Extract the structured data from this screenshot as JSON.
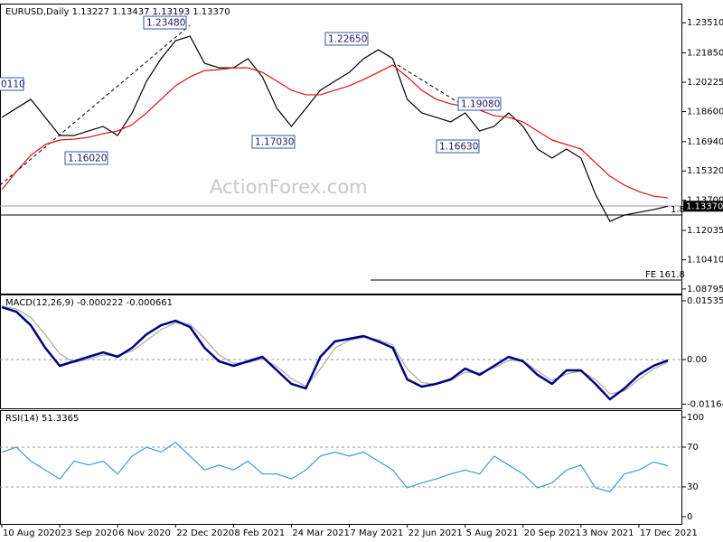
{
  "chart_data": [
    {
      "type": "line",
      "title": "EURUSD,Daily  1.13227 1.13437 1.13193 1.13370",
      "watermark": "ActionForex.com",
      "annotations": [
        "1.23480",
        "1.22650",
        "1.17030",
        "1.16020",
        "1.19080",
        "1.16630",
        "0110"
      ],
      "fe_label": "FE 161.8",
      "fib_label": "1.8",
      "price_label": "1.13370",
      "x": [
        0,
        8,
        16,
        24,
        32,
        40,
        48,
        56,
        64,
        72,
        80,
        88,
        96,
        104,
        112,
        120,
        128,
        136,
        144,
        152,
        160,
        168,
        176,
        184,
        192,
        200,
        208,
        216,
        224,
        232,
        240,
        248,
        256,
        264,
        272,
        280,
        288,
        296,
        304,
        312,
        320,
        328,
        336,
        344,
        352,
        360,
        368
      ],
      "xlim": [
        -1,
        376
      ],
      "ylim": [
        1.0854,
        1.2452
      ],
      "yticks": [
        {
          "value": 1.2351,
          "label": "1.23510"
        },
        {
          "value": 1.2185,
          "label": "1.21850"
        },
        {
          "value": 1.20225,
          "label": "1.20225"
        },
        {
          "value": 1.186,
          "label": "1.18600"
        },
        {
          "value": 1.1694,
          "label": "1.16940"
        },
        {
          "value": 1.1532,
          "label": "1.15320"
        },
        {
          "value": 1.137,
          "label": "1.13700"
        },
        {
          "value": 1.12035,
          "label": "1.12035"
        },
        {
          "value": 1.1041,
          "label": "1.10410"
        },
        {
          "value": 1.08795,
          "label": "1.08795"
        }
      ],
      "series": [
        {
          "color": "#000000",
          "values": [
            1.1828,
            1.1878,
            1.1928,
            1.1828,
            1.1728,
            1.1728,
            1.1753,
            1.1778,
            1.1728,
            1.1853,
            1.2028,
            1.2153,
            1.2252,
            1.2277,
            1.2127,
            1.2102,
            1.2102,
            1.2153,
            1.2052,
            1.1878,
            1.1778,
            1.1878,
            1.1978,
            1.2028,
            1.2077,
            1.2153,
            1.2202,
            1.2153,
            1.1928,
            1.1853,
            1.1828,
            1.1803,
            1.1853,
            1.1753,
            1.1778,
            1.1853,
            1.1778,
            1.1653,
            1.1603,
            1.1653,
            1.1603,
            1.1403,
            1.1253,
            1.1288,
            1.1303,
            1.1318,
            1.1337
          ]
        },
        {
          "color": "#e01010",
          "values": [
            1.1428,
            1.1528,
            1.1618,
            1.1678,
            1.1703,
            1.1708,
            1.1718,
            1.1738,
            1.1753,
            1.1788,
            1.1853,
            1.1928,
            1.2003,
            1.2052,
            1.2087,
            1.2092,
            1.2102,
            1.2102,
            1.2077,
            1.2028,
            1.1978,
            1.1953,
            1.1953,
            1.1978,
            1.2003,
            1.2038,
            1.2077,
            1.2117,
            1.2052,
            1.1978,
            1.1928,
            1.1903,
            1.1888,
            1.1868,
            1.1838,
            1.1828,
            1.1803,
            1.1753,
            1.1703,
            1.1678,
            1.1653,
            1.1578,
            1.1503,
            1.1453,
            1.1418,
            1.1393,
            1.1383
          ]
        }
      ]
    },
    {
      "type": "line",
      "title": "MACD(12,26,9) -0.000222 -0.000661",
      "x": [
        0,
        8,
        16,
        24,
        32,
        40,
        48,
        56,
        64,
        72,
        80,
        88,
        96,
        104,
        112,
        120,
        128,
        136,
        144,
        152,
        160,
        168,
        176,
        184,
        192,
        200,
        208,
        216,
        224,
        232,
        240,
        248,
        256,
        264,
        272,
        280,
        288,
        296,
        304,
        312,
        320,
        328,
        336,
        344,
        352,
        360,
        368
      ],
      "xlim": [
        -1,
        376
      ],
      "ylim": [
        -0.01275,
        0.01677
      ],
      "yticks": [
        0.015351,
        {
          "value": 0,
          "label": "0.00"
        },
        -0.011644
      ],
      "levels": [
        0
      ],
      "series": [
        {
          "color": "#aaaaaa",
          "values": [
            0.014,
            0.0132,
            0.011,
            0.0065,
            0.0015,
            -0.0008,
            0.0001,
            0.0012,
            0.0011,
            0.0022,
            0.005,
            0.0078,
            0.0096,
            0.0092,
            0.0055,
            0.0012,
            -0.001,
            -0.0008,
            0.0002,
            -0.0018,
            -0.005,
            -0.007,
            -0.0025,
            0.003,
            0.005,
            0.0058,
            0.0052,
            0.0038,
            -0.0025,
            -0.006,
            -0.0065,
            -0.0055,
            -0.0033,
            -0.0035,
            -0.0022,
            -0.0002,
            -0.0003,
            -0.003,
            -0.0055,
            -0.0038,
            -0.003,
            -0.0052,
            -0.009,
            -0.0082,
            -0.0052,
            -0.0025,
            -0.000661
          ]
        },
        {
          "color": "#00007f",
          "values": [
            0.01369,
            0.01251,
            0.00897,
            0.00307,
            -0.00165,
            -0.00047,
            0.00071,
            0.00189,
            0.00071,
            0.00307,
            0.00661,
            0.00897,
            0.01015,
            0.0085,
            0.00307,
            -0.00047,
            -0.00165,
            -0.00047,
            0.00071,
            -0.00283,
            -0.00637,
            -0.00755,
            0.00071,
            0.00472,
            0.00543,
            0.00614,
            0.00472,
            0.00307,
            -0.00519,
            -0.00708,
            -0.00637,
            -0.00519,
            -0.00236,
            -0.00401,
            -0.00165,
            0.00071,
            -0.00047,
            -0.00401,
            -0.00637,
            -0.00283,
            -0.00283,
            -0.00637,
            -0.01038,
            -0.00755,
            -0.00401,
            -0.00165,
            -0.000222
          ]
        }
      ]
    },
    {
      "type": "line",
      "title": "RSI(14) 51.3365",
      "x": [
        0,
        8,
        16,
        24,
        32,
        40,
        48,
        56,
        64,
        72,
        80,
        88,
        96,
        104,
        112,
        120,
        128,
        136,
        144,
        152,
        160,
        168,
        176,
        184,
        192,
        200,
        208,
        216,
        224,
        232,
        240,
        248,
        256,
        264,
        272,
        280,
        288,
        296,
        304,
        312,
        320,
        328,
        336,
        344,
        352,
        360,
        368
      ],
      "xlim": [
        -1,
        376
      ],
      "ylim": [
        -7.3,
        106.4
      ],
      "yticks": [
        100,
        70,
        30,
        0
      ],
      "levels": [
        70,
        30
      ],
      "xticks": [
        {
          "value": 0,
          "label": "10 Aug 2020"
        },
        {
          "value": 32,
          "label": "23 Sep 2020"
        },
        {
          "value": 64,
          "label": "6 Nov 2020"
        },
        {
          "value": 96,
          "label": "22 Dec 2020"
        },
        {
          "value": 128,
          "label": "8 Feb 2021"
        },
        {
          "value": 160,
          "label": "24 Mar 2021"
        },
        {
          "value": 192,
          "label": "7 May 2021"
        },
        {
          "value": 224,
          "label": "22 Jun 2021"
        },
        {
          "value": 256,
          "label": "5 Aug 2021"
        },
        {
          "value": 288,
          "label": "20 Sep 2021"
        },
        {
          "value": 320,
          "label": "3 Nov 2021"
        },
        {
          "value": 352,
          "label": "17 Dec 2021"
        }
      ],
      "series": [
        {
          "color": "#3a9ad9",
          "values": [
            65,
            70,
            56,
            47,
            38,
            56,
            52,
            56,
            43,
            61,
            70,
            65,
            75,
            61,
            47,
            52,
            47,
            56,
            43,
            43,
            38,
            47,
            61,
            65,
            61,
            65,
            56,
            47,
            29,
            34,
            38,
            43,
            47,
            43,
            61,
            52,
            43,
            29,
            34,
            47,
            52,
            29,
            25,
            43,
            47,
            55,
            51.3365
          ]
        }
      ]
    }
  ]
}
